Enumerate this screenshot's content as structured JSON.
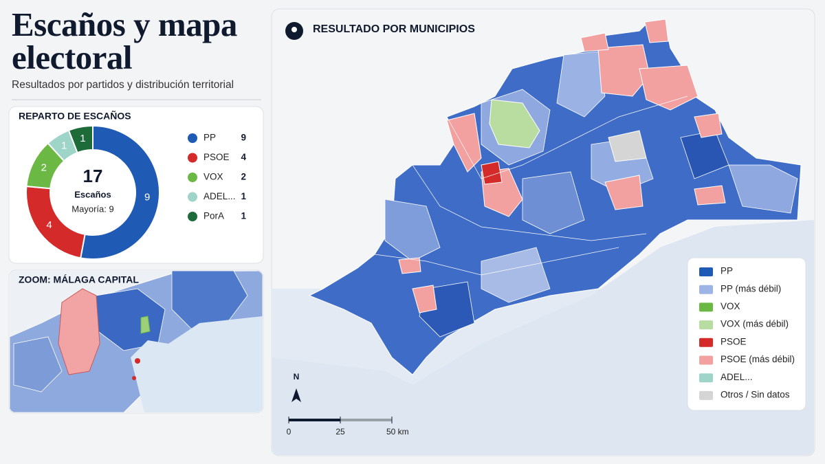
{
  "header": {
    "title": "Escaños y mapa electoral",
    "subtitle": "Resultados por partidos y distribución territorial"
  },
  "chart_data": {
    "type": "donut",
    "title": "REPARTO DE ESCAÑOS",
    "categories": [
      "PP",
      "PSOE",
      "VOX",
      "ADEL...",
      "PorA"
    ],
    "values": [
      9,
      4,
      2,
      1,
      1
    ],
    "colors": [
      "#1f5bb5",
      "#d42a2a",
      "#6cb844",
      "#9fd4c8",
      "#1e6b3a"
    ],
    "total": 17,
    "total_label": "Escaños",
    "majority": "Mayoría: 9"
  },
  "zoom": {
    "title": "ZOOM: MÁLAGA CAPITAL"
  },
  "map": {
    "title": "RESULTADO POR MUNICIPIOS",
    "north": "N",
    "legend": [
      {
        "label": "PP",
        "color": "#1f5bb5"
      },
      {
        "label": "PP (más débil)",
        "color": "#9db4e6"
      },
      {
        "label": "VOX",
        "color": "#6cb844"
      },
      {
        "label": "VOX (más débil)",
        "color": "#b9dca0"
      },
      {
        "label": "PSOE",
        "color": "#d42a2a"
      },
      {
        "label": "PSOE (más débil)",
        "color": "#f2a0a0"
      },
      {
        "label": "ADEL...",
        "color": "#9fd4c8"
      },
      {
        "label": "Otros / Sin datos",
        "color": "#d5d5d5"
      }
    ],
    "scale": {
      "xlim": [
        0,
        50
      ],
      "xticks": [
        0,
        25,
        {
          "value": 50,
          "label": "50 km"
        }
      ]
    }
  }
}
